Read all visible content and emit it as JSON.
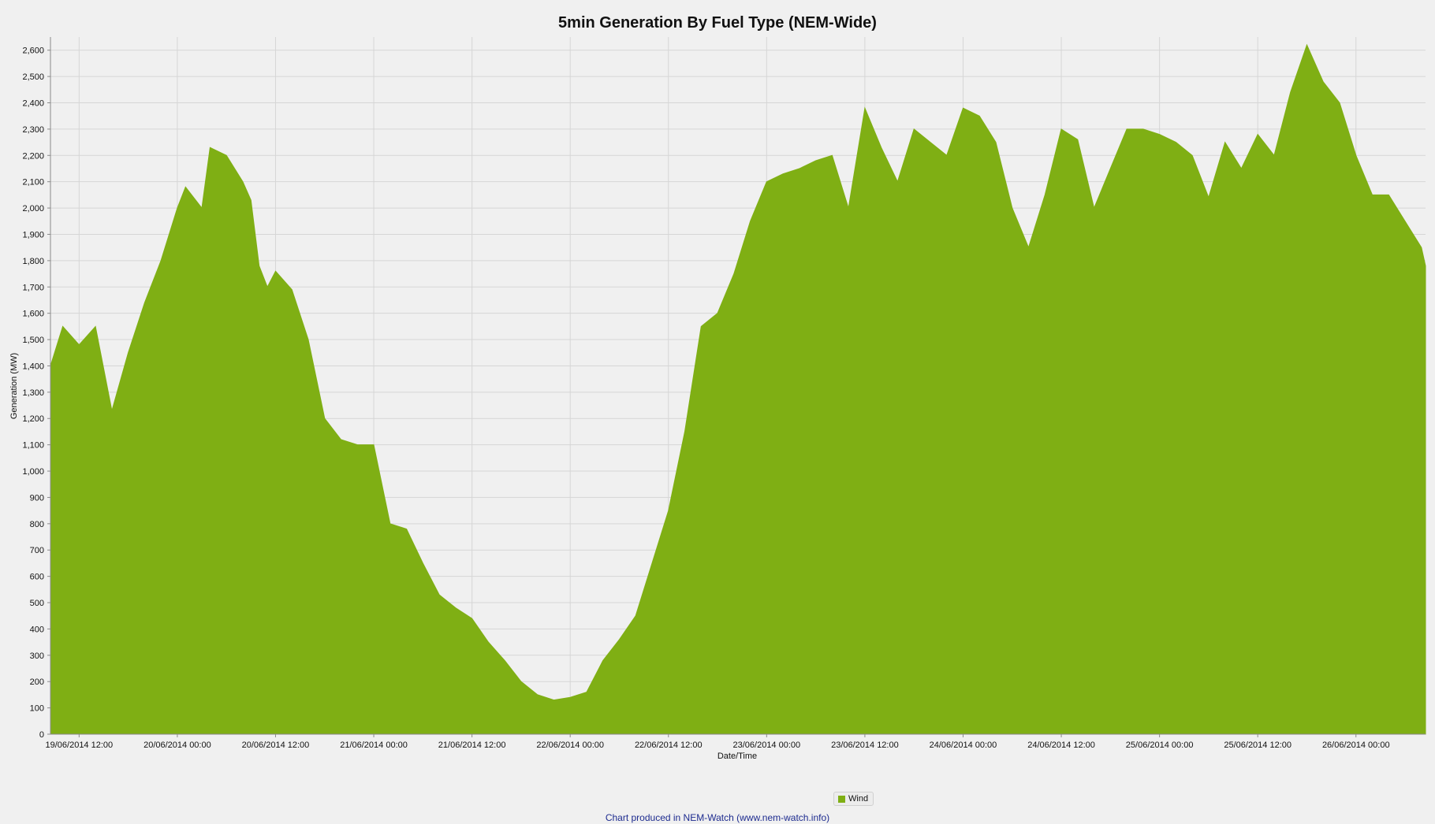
{
  "colors": {
    "wind": "#7faf14",
    "background": "#f0f0f0"
  },
  "credit": "Chart produced in NEM-Watch (www.nem-watch.info)",
  "chart_data": {
    "type": "area",
    "title": "5min Generation By Fuel Type (NEM-Wide)",
    "xlabel": "Date/Time",
    "ylabel": "Generation (MW)",
    "ylim": [
      0,
      2650
    ],
    "yticks": [
      0,
      100,
      200,
      300,
      400,
      500,
      600,
      700,
      800,
      900,
      1000,
      1100,
      1200,
      1300,
      1400,
      1500,
      1600,
      1700,
      1800,
      1900,
      2000,
      2100,
      2200,
      2300,
      2400,
      2500,
      2600
    ],
    "ytick_labels": [
      "0",
      "100",
      "200",
      "300",
      "400",
      "500",
      "600",
      "700",
      "800",
      "900",
      "1,000",
      "1,100",
      "1,200",
      "1,300",
      "1,400",
      "1,500",
      "1,600",
      "1,700",
      "1,800",
      "1,900",
      "2,000",
      "2,100",
      "2,200",
      "2,300",
      "2,400",
      "2,500",
      "2,600"
    ],
    "x_range": [
      "19/06/2014 08:30",
      "26/06/2014 08:30"
    ],
    "xticks": [
      "19/06/2014 12:00",
      "20/06/2014 00:00",
      "20/06/2014 12:00",
      "21/06/2014 00:00",
      "21/06/2014 12:00",
      "22/06/2014 00:00",
      "22/06/2014 12:00",
      "23/06/2014 00:00",
      "23/06/2014 12:00",
      "24/06/2014 00:00",
      "24/06/2014 12:00",
      "25/06/2014 00:00",
      "25/06/2014 12:00",
      "26/06/2014 00:00"
    ],
    "grid": true,
    "legend_position": "bottom",
    "series": [
      {
        "name": "Wind",
        "x": [
          "19/06/2014 08:30",
          "19/06/2014 10:00",
          "19/06/2014 12:00",
          "19/06/2014 14:00",
          "19/06/2014 16:00",
          "19/06/2014 18:00",
          "19/06/2014 20:00",
          "19/06/2014 22:00",
          "20/06/2014 00:00",
          "20/06/2014 01:00",
          "20/06/2014 03:00",
          "20/06/2014 04:00",
          "20/06/2014 06:00",
          "20/06/2014 08:00",
          "20/06/2014 09:00",
          "20/06/2014 10:00",
          "20/06/2014 11:00",
          "20/06/2014 12:00",
          "20/06/2014 14:00",
          "20/06/2014 16:00",
          "20/06/2014 18:00",
          "20/06/2014 20:00",
          "20/06/2014 22:00",
          "21/06/2014 00:00",
          "21/06/2014 02:00",
          "21/06/2014 04:00",
          "21/06/2014 06:00",
          "21/06/2014 08:00",
          "21/06/2014 10:00",
          "21/06/2014 12:00",
          "21/06/2014 14:00",
          "21/06/2014 16:00",
          "21/06/2014 18:00",
          "21/06/2014 20:00",
          "21/06/2014 22:00",
          "22/06/2014 00:00",
          "22/06/2014 02:00",
          "22/06/2014 04:00",
          "22/06/2014 06:00",
          "22/06/2014 08:00",
          "22/06/2014 10:00",
          "22/06/2014 12:00",
          "22/06/2014 14:00",
          "22/06/2014 16:00",
          "22/06/2014 18:00",
          "22/06/2014 20:00",
          "22/06/2014 22:00",
          "23/06/2014 00:00",
          "23/06/2014 02:00",
          "23/06/2014 04:00",
          "23/06/2014 06:00",
          "23/06/2014 08:00",
          "23/06/2014 10:00",
          "23/06/2014 12:00",
          "23/06/2014 14:00",
          "23/06/2014 16:00",
          "23/06/2014 18:00",
          "23/06/2014 20:00",
          "23/06/2014 22:00",
          "24/06/2014 00:00",
          "24/06/2014 02:00",
          "24/06/2014 04:00",
          "24/06/2014 06:00",
          "24/06/2014 08:00",
          "24/06/2014 10:00",
          "24/06/2014 12:00",
          "24/06/2014 14:00",
          "24/06/2014 16:00",
          "24/06/2014 18:00",
          "24/06/2014 20:00",
          "24/06/2014 22:00",
          "25/06/2014 00:00",
          "25/06/2014 02:00",
          "25/06/2014 04:00",
          "25/06/2014 06:00",
          "25/06/2014 08:00",
          "25/06/2014 10:00",
          "25/06/2014 12:00",
          "25/06/2014 14:00",
          "25/06/2014 16:00",
          "25/06/2014 18:00",
          "25/06/2014 20:00",
          "25/06/2014 22:00",
          "26/06/2014 00:00",
          "26/06/2014 02:00",
          "26/06/2014 04:00",
          "26/06/2014 06:00",
          "26/06/2014 08:00",
          "26/06/2014 08:30"
        ],
        "values": [
          1400,
          1550,
          1480,
          1550,
          1230,
          1450,
          1640,
          1800,
          2000,
          2080,
          2000,
          2230,
          2200,
          2100,
          2030,
          1780,
          1700,
          1760,
          1690,
          1500,
          1200,
          1120,
          1100,
          1100,
          800,
          780,
          650,
          530,
          480,
          440,
          350,
          280,
          200,
          150,
          130,
          140,
          160,
          280,
          360,
          450,
          650,
          850,
          1150,
          1550,
          1600,
          1750,
          1950,
          2100,
          2130,
          2150,
          2180,
          2200,
          2000,
          2380,
          2230,
          2100,
          2300,
          2250,
          2200,
          2380,
          2350,
          2250,
          2000,
          1850,
          2050,
          2300,
          2260,
          2000,
          2150,
          2300,
          2300,
          2280,
          2250,
          2200,
          2040,
          2250,
          2150,
          2280,
          2200,
          2440,
          2620,
          2480,
          2400,
          2200,
          2050,
          2050,
          1950,
          1850,
          1780
        ]
      }
    ]
  }
}
